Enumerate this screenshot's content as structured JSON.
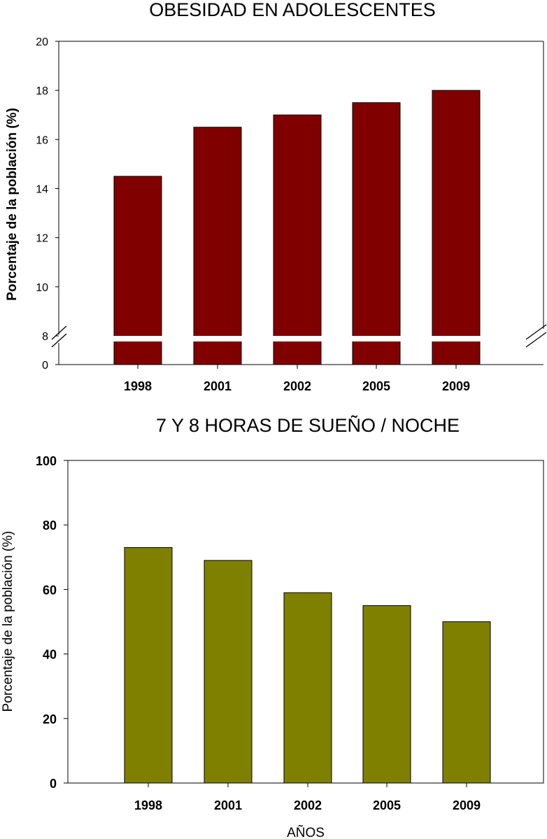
{
  "chart_data": [
    {
      "type": "bar",
      "title": "OBESIDAD EN ADOLESCENTES",
      "ylabel": "Porcentaje de la población (%)",
      "xlabel": "",
      "categories": [
        "1998",
        "2001",
        "2002",
        "2005",
        "2009"
      ],
      "values": [
        14.5,
        16.5,
        17.0,
        17.5,
        18.0
      ],
      "ylim": [
        8,
        20
      ],
      "axis_break": true,
      "ybase": 0,
      "yticks": [
        8,
        10,
        12,
        14,
        16,
        18,
        20
      ],
      "grid": false,
      "bar_color": "#800000"
    },
    {
      "type": "bar",
      "title": "7 Y 8 HORAS DE SUEÑO / NOCHE",
      "ylabel": "Porcentaje de la población (%)",
      "xlabel": "AÑOS",
      "categories": [
        "1998",
        "2001",
        "2002",
        "2005",
        "2009"
      ],
      "values": [
        73,
        69,
        59,
        55,
        50
      ],
      "ylim": [
        0,
        100
      ],
      "yticks": [
        0,
        20,
        40,
        60,
        80,
        100
      ],
      "grid": false,
      "bar_color": "#808000"
    }
  ]
}
